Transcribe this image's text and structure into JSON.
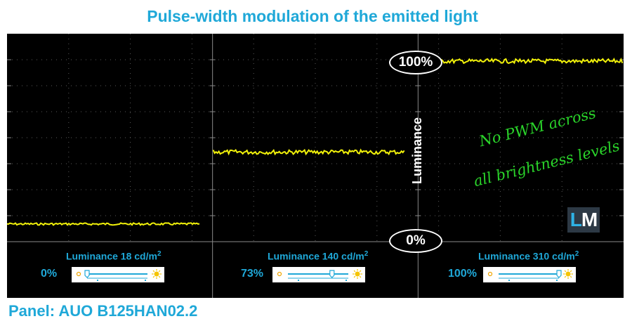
{
  "title": "Pulse-width modulation of the emitted light",
  "panel": "Panel: AUO B125HAN02.2",
  "ylabel": "Luminance",
  "marker_top": "100%",
  "marker_bottom": "0%",
  "note_line1": "No PWM across",
  "note_line2": "all brightness levels",
  "logo": {
    "l": "L",
    "m": "M"
  },
  "segments": [
    {
      "brightness_label": "0%",
      "luminance_label": "Luminance 18 cd/m",
      "superscript": "2",
      "slider_fraction": 0.0
    },
    {
      "brightness_label": "73%",
      "luminance_label": "Luminance 140 cd/m",
      "superscript": "2",
      "slider_fraction": 0.73
    },
    {
      "brightness_label": "100%",
      "luminance_label": "Luminance 310 cd/m",
      "superscript": "2",
      "slider_fraction": 1.0
    }
  ],
  "chart_data": {
    "type": "line",
    "title": "Pulse-width modulation of the emitted light",
    "ylabel": "Luminance",
    "ylim": [
      0,
      100
    ],
    "series": [
      {
        "name": "0%",
        "level": 4.2
      },
      {
        "name": "73%",
        "level": 46.5
      },
      {
        "name": "100%",
        "level": 100
      }
    ],
    "grid": true,
    "colors": {
      "trace": "#f2f20a",
      "grid": "#8a8a8a",
      "accent": "#1fa8d8"
    }
  }
}
